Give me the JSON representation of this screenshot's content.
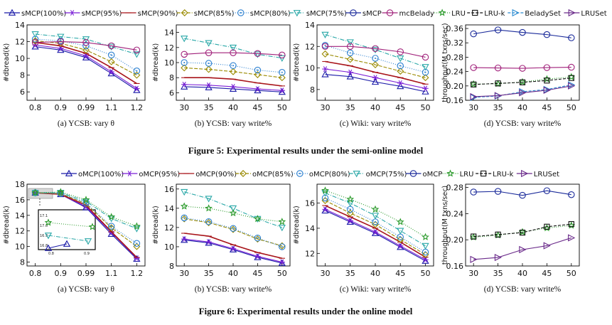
{
  "figure5": {
    "caption": "Figure 5: Experimental results under the semi-online model",
    "legend": [
      "sMCP(100%)",
      "sMCP(95%)",
      "sMCP(90%)",
      "sMCP(85%)",
      "sMCP(80%)",
      "sMCP(75%)",
      "sMCP",
      "mcBelady",
      "LRU",
      "LRU-k",
      "BeladySet",
      "LRUSet"
    ]
  },
  "figure6": {
    "caption": "Figure 6: Experimental results under the online model",
    "legend": [
      "oMCP(100%)",
      "oMCP(95%)",
      "oMCP(90%)",
      "oMCP(85%)",
      "oMCP(80%)",
      "oMCP(75%)",
      "oMCP",
      "LRU",
      "LRU-k",
      "LRUSet"
    ]
  },
  "series_colors": {
    "sMCP(100%)": "#1a1aa8",
    "sMCP(95%)": "#7b1fd6",
    "sMCP(90%)": "#a8141a",
    "sMCP(85%)": "#9a8a00",
    "sMCP(80%)": "#2a7fd0",
    "sMCP(75%)": "#2aa8a8",
    "sMCP": "#1a2a9a",
    "mcBelady": "#a0207a",
    "LRU": "#2a9a2a",
    "LRU-k": "#111111",
    "BeladySet": "#2a8ad0",
    "LRUSet": "#6a2a8a",
    "oMCP(100%)": "#1a1aa8",
    "oMCP(95%)": "#7b1fd6",
    "oMCP(90%)": "#a8141a",
    "oMCP(85%)": "#9a8a00",
    "oMCP(80%)": "#2a7fd0",
    "oMCP(75%)": "#2aa8a8",
    "oMCP": "#1a2a9a"
  },
  "chart_data": [
    {
      "type": "line",
      "figure": "5",
      "caption": "(a) YCSB: vary θ",
      "ylabel": "#dbread(k)",
      "x": [
        0.8,
        0.9,
        0.99,
        1.1,
        1.2
      ],
      "xticks": [
        "0.8",
        "0.9",
        "0.99",
        "1.1",
        "1.2"
      ],
      "ylim": [
        5,
        14
      ],
      "yticks": [
        6,
        8,
        10,
        12,
        14
      ],
      "series": [
        {
          "name": "sMCP(100%)",
          "values": [
            11.4,
            11.0,
            10.1,
            8.2,
            6.2
          ]
        },
        {
          "name": "sMCP(95%)",
          "values": [
            11.6,
            11.2,
            10.3,
            8.4,
            6.4
          ]
        },
        {
          "name": "sMCP(90%)",
          "values": [
            11.9,
            11.5,
            10.6,
            8.9,
            7.0
          ]
        },
        {
          "name": "sMCP(85%)",
          "values": [
            12.1,
            11.8,
            11.0,
            9.6,
            8.0
          ]
        },
        {
          "name": "sMCP(80%)",
          "values": [
            12.3,
            12.1,
            11.5,
            10.4,
            8.5
          ]
        },
        {
          "name": "sMCP(75%)",
          "values": [
            12.9,
            12.6,
            12.3,
            11.4,
            10.5
          ]
        },
        {
          "name": "mcBelady",
          "values": [
            11.9,
            12.0,
            11.9,
            11.5,
            11.0
          ]
        }
      ]
    },
    {
      "type": "line",
      "figure": "5",
      "caption": "(b) YCSB: vary write%",
      "ylabel": "#dbread(k)",
      "x": [
        30,
        35,
        40,
        45,
        50
      ],
      "xticks": [
        "30",
        "35",
        "40",
        "45",
        "50"
      ],
      "ylim": [
        5,
        15
      ],
      "yticks": [
        6,
        8,
        10,
        12,
        14
      ],
      "series": [
        {
          "name": "sMCP(100%)",
          "values": [
            6.8,
            6.7,
            6.5,
            6.3,
            6.1
          ]
        },
        {
          "name": "sMCP(95%)",
          "values": [
            7.1,
            7.0,
            6.8,
            6.5,
            6.3
          ]
        },
        {
          "name": "sMCP(90%)",
          "values": [
            8.0,
            8.0,
            7.8,
            7.3,
            6.9
          ]
        },
        {
          "name": "sMCP(85%)",
          "values": [
            9.3,
            9.1,
            8.8,
            8.4,
            8.0
          ]
        },
        {
          "name": "sMCP(80%)",
          "values": [
            10.0,
            9.9,
            9.6,
            9.0,
            8.7
          ]
        },
        {
          "name": "sMCP(75%)",
          "values": [
            13.2,
            12.6,
            12.0,
            11.1,
            10.6
          ]
        },
        {
          "name": "mcBelady",
          "values": [
            11.1,
            11.3,
            11.3,
            11.2,
            11.0
          ]
        }
      ]
    },
    {
      "type": "line",
      "figure": "5",
      "caption": "(c) Wiki: vary write%",
      "ylabel": "#dbread(k)",
      "x": [
        30,
        35,
        40,
        45,
        50
      ],
      "xticks": [
        "30",
        "35",
        "40",
        "45",
        "50"
      ],
      "ylim": [
        7,
        14
      ],
      "yticks": [
        8,
        10,
        12,
        14
      ],
      "series": [
        {
          "name": "sMCP(100%)",
          "values": [
            9.4,
            9.2,
            8.7,
            8.3,
            7.8
          ]
        },
        {
          "name": "sMCP(95%)",
          "values": [
            9.9,
            9.6,
            9.1,
            8.6,
            8.1
          ]
        },
        {
          "name": "sMCP(90%)",
          "values": [
            10.6,
            10.2,
            9.6,
            9.1,
            8.5
          ]
        },
        {
          "name": "sMCP(85%)",
          "values": [
            11.3,
            10.8,
            10.3,
            9.7,
            9.1
          ]
        },
        {
          "name": "sMCP(80%)",
          "values": [
            12.1,
            11.4,
            10.9,
            10.2,
            9.6
          ]
        },
        {
          "name": "sMCP(75%)",
          "values": [
            13.1,
            12.4,
            11.7,
            10.9,
            10.1
          ]
        },
        {
          "name": "mcBelady",
          "values": [
            12.0,
            12.0,
            11.8,
            11.5,
            11.0
          ]
        }
      ]
    },
    {
      "type": "line",
      "figure": "5",
      "caption": "(d) YCSB: vary write%",
      "ylabel": "throughput(M txns/sec)",
      "x": [
        30,
        35,
        40,
        45,
        50
      ],
      "xticks": [
        "30",
        "35",
        "40",
        "45",
        "50"
      ],
      "ylim": [
        0.16,
        0.37
      ],
      "yticks": [
        "0.16",
        "0.20",
        "0.24",
        "0.28",
        "0.32",
        "0.36"
      ],
      "series": [
        {
          "name": "sMCP",
          "values": [
            0.345,
            0.356,
            0.349,
            0.343,
            0.334
          ]
        },
        {
          "name": "mcBelady",
          "values": [
            0.251,
            0.25,
            0.249,
            0.251,
            0.252
          ]
        },
        {
          "name": "LRU",
          "values": [
            0.205,
            0.206,
            0.211,
            0.219,
            0.225
          ]
        },
        {
          "name": "LRU-k",
          "values": [
            0.204,
            0.207,
            0.21,
            0.215,
            0.222
          ]
        },
        {
          "name": "BeladySet",
          "values": [
            0.168,
            0.172,
            0.184,
            0.19,
            0.203
          ]
        },
        {
          "name": "LRUSet",
          "values": [
            0.17,
            0.173,
            0.181,
            0.188,
            0.2
          ]
        }
      ]
    },
    {
      "type": "line",
      "figure": "6",
      "caption": "(a) YCSB: vary θ",
      "ylabel": "#dbread(k)",
      "x": [
        0.8,
        0.9,
        0.99,
        1.1,
        1.2
      ],
      "xticks": [
        "0.8",
        "0.9",
        "0.99",
        "1.1",
        "1.2"
      ],
      "ylim": [
        7.5,
        18
      ],
      "yticks": [
        8,
        10,
        12,
        14,
        16,
        18
      ],
      "inset": {
        "yticks": [
          "16.8",
          "16.9",
          "17.0",
          "17.1"
        ],
        "xticks": [
          "0.8",
          "0.9"
        ]
      },
      "series": [
        {
          "name": "oMCP(100%)",
          "values": [
            16.9,
            16.7,
            15.0,
            11.6,
            8.4
          ]
        },
        {
          "name": "oMCP(95%)",
          "values": [
            16.9,
            16.7,
            15.1,
            11.8,
            8.5
          ]
        },
        {
          "name": "oMCP(90%)",
          "values": [
            16.9,
            16.7,
            15.3,
            11.9,
            8.6
          ]
        },
        {
          "name": "oMCP(85%)",
          "values": [
            16.9,
            16.8,
            15.5,
            12.4,
            10.0
          ]
        },
        {
          "name": "oMCP(80%)",
          "values": [
            16.9,
            16.8,
            15.6,
            12.6,
            10.4
          ]
        },
        {
          "name": "oMCP(75%)",
          "values": [
            16.9,
            16.9,
            15.8,
            13.6,
            12.3
          ]
        },
        {
          "name": "LRU",
          "values": [
            16.9,
            17.0,
            16.0,
            13.8,
            12.6
          ]
        }
      ]
    },
    {
      "type": "line",
      "figure": "6",
      "caption": "(b) YCSB: vary write%",
      "ylabel": "#dbread(k)",
      "x": [
        30,
        35,
        40,
        45,
        50
      ],
      "xticks": [
        "30",
        "35",
        "40",
        "45",
        "50"
      ],
      "ylim": [
        8,
        16.5
      ],
      "yticks": [
        8,
        10,
        12,
        14,
        16
      ],
      "series": [
        {
          "name": "oMCP(100%)",
          "values": [
            10.7,
            10.4,
            9.7,
            8.9,
            8.3
          ]
        },
        {
          "name": "oMCP(95%)",
          "values": [
            10.8,
            10.5,
            9.8,
            9.0,
            8.4
          ]
        },
        {
          "name": "oMCP(90%)",
          "values": [
            11.4,
            11.1,
            10.2,
            9.4,
            8.8
          ]
        },
        {
          "name": "oMCP(85%)",
          "values": [
            12.9,
            12.5,
            11.8,
            10.8,
            10.1
          ]
        },
        {
          "name": "oMCP(80%)",
          "values": [
            13.0,
            12.6,
            11.9,
            10.9,
            10.0
          ]
        },
        {
          "name": "oMCP(75%)",
          "values": [
            15.7,
            15.0,
            14.0,
            12.9,
            12.0
          ]
        },
        {
          "name": "LRU",
          "values": [
            14.2,
            14.0,
            13.5,
            12.9,
            12.6
          ]
        }
      ]
    },
    {
      "type": "line",
      "figure": "6",
      "caption": "(c) Wiki: vary write%",
      "ylabel": "#dbread(k)",
      "x": [
        30,
        35,
        40,
        45,
        50
      ],
      "xticks": [
        "30",
        "35",
        "40",
        "45",
        "50"
      ],
      "ylim": [
        11,
        17.5
      ],
      "yticks": [
        12,
        14,
        16
      ],
      "series": [
        {
          "name": "oMCP(100%)",
          "values": [
            15.4,
            14.5,
            13.6,
            12.5,
            11.4
          ]
        },
        {
          "name": "oMCP(95%)",
          "values": [
            15.5,
            14.6,
            13.7,
            12.6,
            11.5
          ]
        },
        {
          "name": "oMCP(90%)",
          "values": [
            15.8,
            14.9,
            14.0,
            12.9,
            11.7
          ]
        },
        {
          "name": "oMCP(85%)",
          "values": [
            16.2,
            15.2,
            14.3,
            13.1,
            11.9
          ]
        },
        {
          "name": "oMCP(80%)",
          "values": [
            16.4,
            15.5,
            14.5,
            13.3,
            12.1
          ]
        },
        {
          "name": "oMCP(75%)",
          "values": [
            16.8,
            16.0,
            15.0,
            13.8,
            12.6
          ]
        },
        {
          "name": "LRU",
          "values": [
            17.0,
            16.3,
            15.5,
            14.5,
            13.3
          ]
        }
      ]
    },
    {
      "type": "line",
      "figure": "6",
      "caption": "(d) YCSB: vary write%",
      "ylabel": "throughput(M txns/sec)",
      "x": [
        30,
        35,
        40,
        45,
        50
      ],
      "xticks": [
        "30",
        "35",
        "40",
        "45",
        "50"
      ],
      "ylim": [
        0.16,
        0.285
      ],
      "yticks": [
        "0.16",
        "0.20",
        "0.24",
        "0.28"
      ],
      "series": [
        {
          "name": "oMCP",
          "values": [
            0.273,
            0.274,
            0.268,
            0.275,
            0.269
          ]
        },
        {
          "name": "LRU",
          "values": [
            0.204,
            0.207,
            0.212,
            0.218,
            0.222
          ]
        },
        {
          "name": "LRU-k",
          "values": [
            0.205,
            0.208,
            0.211,
            0.22,
            0.224
          ]
        },
        {
          "name": "LRUSet",
          "values": [
            0.17,
            0.173,
            0.185,
            0.191,
            0.203
          ]
        }
      ]
    }
  ]
}
